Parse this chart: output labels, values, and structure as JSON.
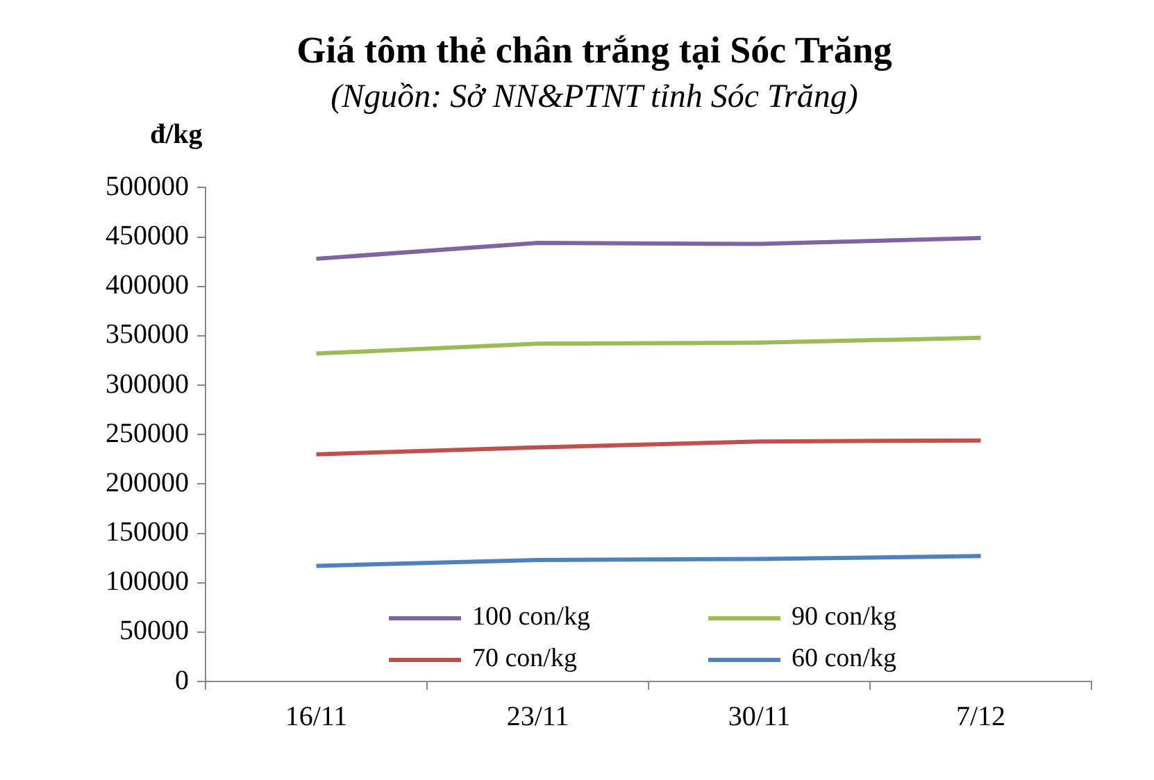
{
  "chart_data": {
    "type": "line",
    "title": "Giá tôm thẻ chân trắng tại Sóc Trăng",
    "subtitle": "(Nguồn: Sở NN&PTNT tỉnh Sóc Trăng)",
    "ylabel": "đ/kg",
    "categories": [
      "16/11",
      "23/11",
      "30/11",
      "7/12"
    ],
    "series": [
      {
        "name": "100 con/kg",
        "color": "#8064a2",
        "values": [
          428000,
          444000,
          443000,
          449000
        ]
      },
      {
        "name": "90 con/kg",
        "color": "#9bbb59",
        "values": [
          332000,
          342000,
          343000,
          348000
        ]
      },
      {
        "name": "70 con/kg",
        "color": "#c0504d",
        "values": [
          230000,
          237000,
          243000,
          244000
        ]
      },
      {
        "name": "60 con/kg",
        "color": "#4f81bd",
        "values": [
          117000,
          123000,
          124000,
          127000
        ]
      }
    ],
    "ylim": [
      0,
      500000
    ],
    "yticks": [
      0,
      50000,
      100000,
      150000,
      200000,
      250000,
      300000,
      350000,
      400000,
      450000,
      500000
    ],
    "grid": false,
    "legend": "bottom",
    "marker": "none",
    "line_style": "solid"
  }
}
